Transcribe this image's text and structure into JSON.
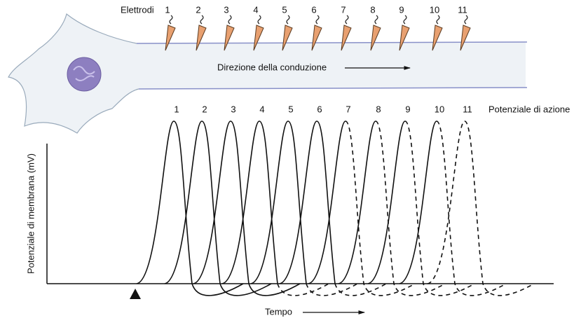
{
  "electrodes_title": "Elettrodi",
  "electrodes": [
    "1",
    "2",
    "3",
    "4",
    "5",
    "6",
    "7",
    "8",
    "9",
    "10",
    "11"
  ],
  "direction_label": "Direzione della conduzione",
  "action_potentials_title": "Potenziale di azione",
  "action_potentials": [
    "1",
    "2",
    "3",
    "4",
    "5",
    "6",
    "7",
    "8",
    "9",
    "10",
    "11"
  ],
  "y_axis_label": "Potenziale di membrana (mV)",
  "x_axis_label": "Tempo"
}
